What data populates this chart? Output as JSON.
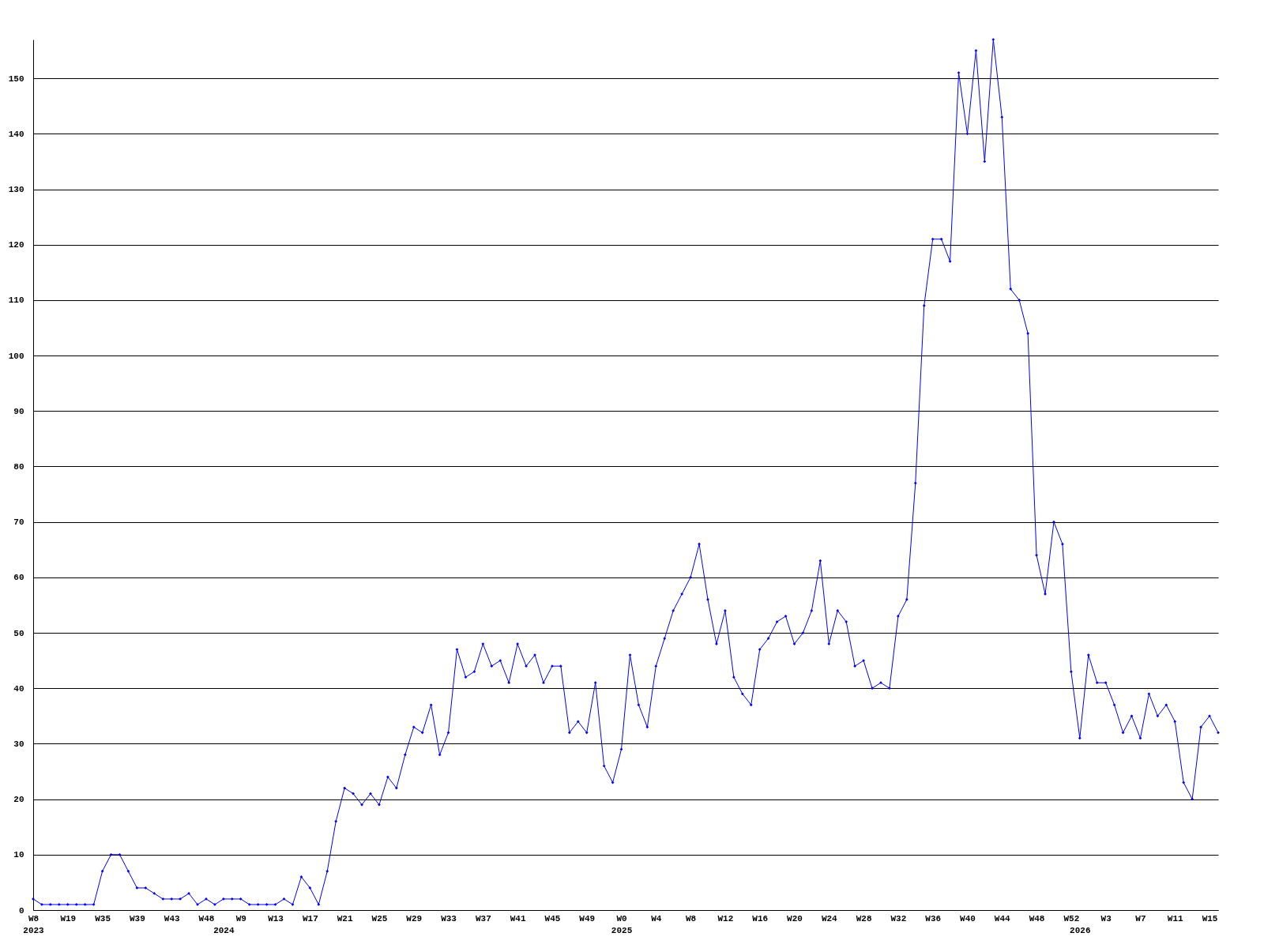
{
  "chart_data": {
    "type": "line",
    "categories": [
      "W8\n2023",
      null,
      null,
      null,
      "W19",
      null,
      null,
      null,
      "W35",
      null,
      null,
      null,
      "W39",
      null,
      null,
      null,
      "W43",
      null,
      null,
      null,
      "W48",
      null,
      "\n2024",
      null,
      "W9",
      null,
      null,
      null,
      "W13",
      null,
      null,
      null,
      "W17",
      null,
      null,
      null,
      "W21",
      null,
      null,
      null,
      "W25",
      null,
      null,
      null,
      "W29",
      null,
      null,
      null,
      "W33",
      null,
      null,
      null,
      "W37",
      null,
      null,
      null,
      "W41",
      null,
      null,
      null,
      "W45",
      null,
      null,
      null,
      "W49",
      null,
      null,
      null,
      "W0\n2025",
      null,
      null,
      null,
      "W4",
      null,
      null,
      null,
      "W8",
      null,
      null,
      null,
      "W12",
      null,
      null,
      null,
      "W16",
      null,
      null,
      null,
      "W20",
      null,
      null,
      null,
      "W24",
      null,
      null,
      null,
      "W28",
      null,
      null,
      null,
      "W32",
      null,
      null,
      null,
      "W36",
      null,
      null,
      null,
      "W40",
      null,
      null,
      null,
      "W44",
      null,
      null,
      null,
      "W48",
      null,
      null,
      null,
      "W52",
      "\n2026",
      null,
      null,
      "W3",
      null,
      null,
      null,
      "W7",
      null,
      null,
      null,
      "W11",
      null,
      null,
      null,
      "W15",
      null
    ],
    "series": [
      {
        "color": "#0000ff",
        "values": [
          2,
          1,
          1,
          1,
          1,
          1,
          1,
          1,
          7,
          10,
          10,
          7,
          4,
          4,
          3,
          2,
          2,
          2,
          3,
          1,
          2,
          1,
          2,
          2,
          2,
          1,
          1,
          1,
          1,
          2,
          1,
          6,
          4,
          1,
          7,
          16,
          22,
          21,
          19,
          21,
          19,
          24,
          22,
          28,
          33,
          32,
          37,
          28,
          32,
          47,
          42,
          43,
          48,
          44,
          45,
          41,
          48,
          44,
          46,
          41,
          44,
          44,
          32,
          34,
          32,
          41,
          26,
          23,
          29,
          46,
          37,
          33,
          44,
          49,
          54,
          57,
          60,
          66,
          56,
          48,
          54,
          42,
          39,
          37,
          47,
          49,
          52,
          53,
          48,
          50,
          54,
          63,
          48,
          54,
          52,
          44,
          45,
          40,
          41,
          40,
          53,
          56,
          77,
          109,
          121,
          121,
          117,
          151,
          140,
          155,
          135,
          157,
          143,
          112,
          110,
          104,
          64,
          57,
          70,
          66,
          43,
          31,
          46,
          41,
          41,
          37,
          32,
          35,
          31,
          39,
          35,
          37,
          34,
          23,
          20,
          33,
          35,
          32
        ]
      }
    ],
    "ylim": [
      0,
      157
    ],
    "yticks": [
      0,
      10,
      20,
      30,
      40,
      50,
      60,
      70,
      80,
      90,
      100,
      110,
      120,
      130,
      140,
      150
    ],
    "grid": "y",
    "marker": "diamond",
    "line_style": "solid"
  }
}
